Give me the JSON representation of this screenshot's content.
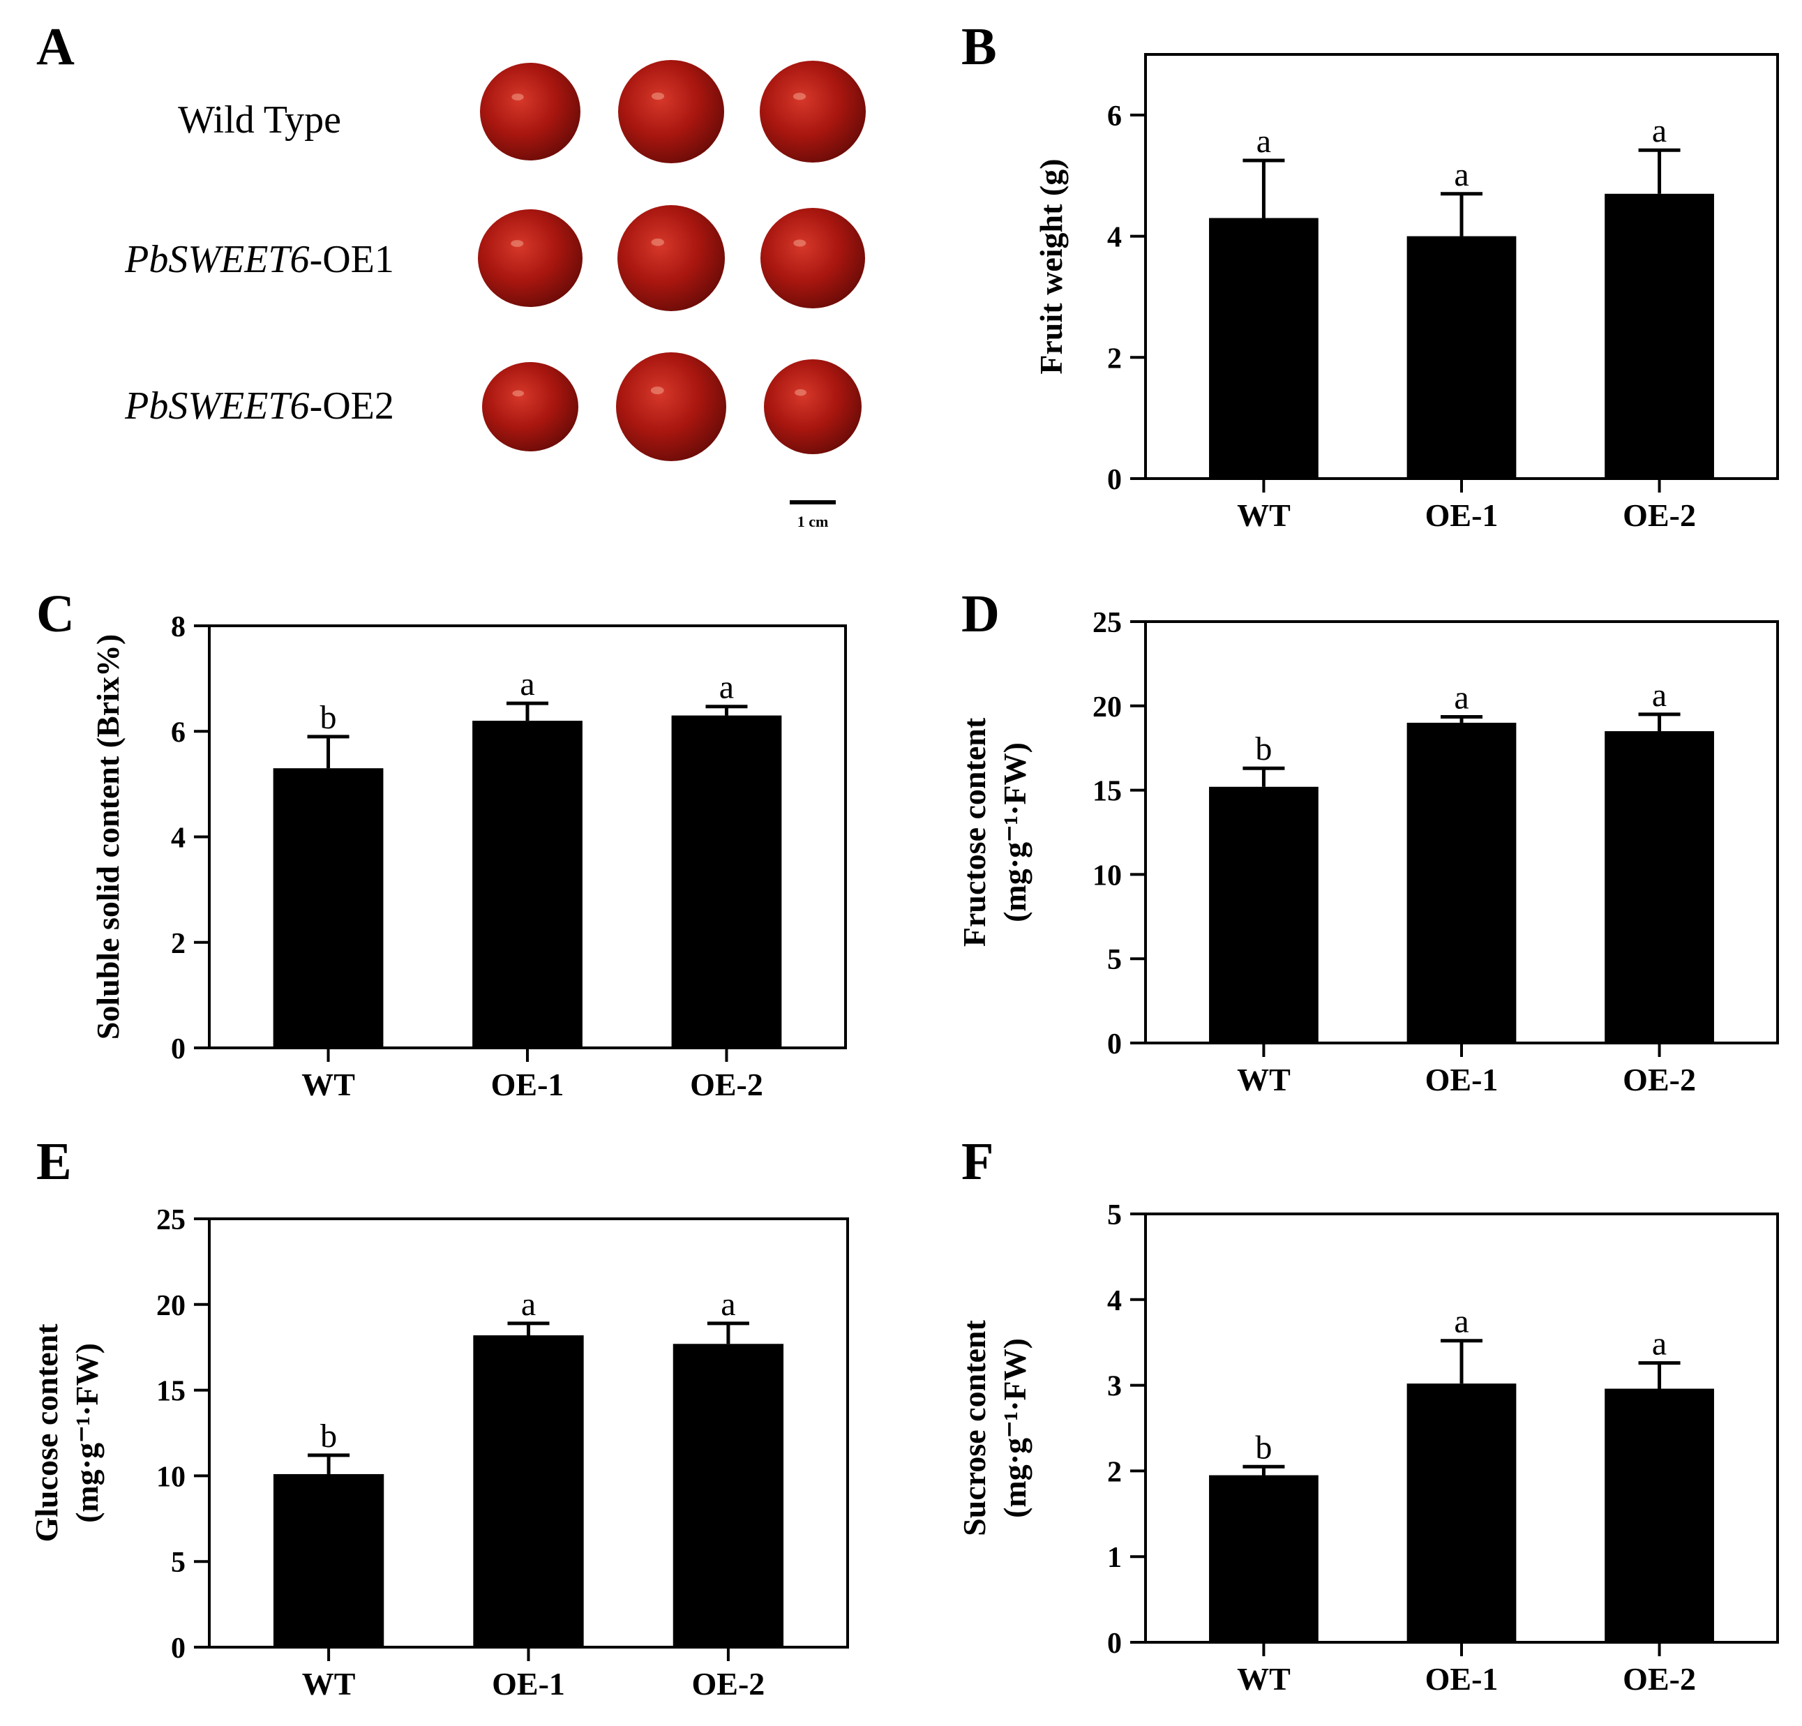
{
  "panels": [
    {
      "letter": "A"
    },
    {
      "letter": "B"
    },
    {
      "letter": "C"
    },
    {
      "letter": "D"
    },
    {
      "letter": "E"
    },
    {
      "letter": "F"
    }
  ],
  "photo_panel": {
    "rows": [
      {
        "label_italic": "",
        "label_plain": "Wild Type"
      },
      {
        "label_italic": "PbSWEET6",
        "label_plain": "-OE1"
      },
      {
        "label_italic": "PbSWEET6",
        "label_plain": "-OE2"
      }
    ],
    "scale_bar_label": "1 cm",
    "fruit_color": "#a8160f"
  },
  "chart_data": [
    {
      "panel": "B",
      "type": "bar",
      "categories": [
        "WT",
        "OE-1",
        "OE-2"
      ],
      "values": [
        4.3,
        4.0,
        4.7
      ],
      "errors": [
        0.95,
        0.7,
        0.72
      ],
      "significance": [
        "a",
        "a",
        "a"
      ],
      "ylabel_lines": [
        "Fruit weight (g)"
      ],
      "ylim": [
        0,
        7
      ],
      "yticks": [
        0,
        2,
        4,
        6
      ]
    },
    {
      "panel": "C",
      "type": "bar",
      "categories": [
        "WT",
        "OE-1",
        "OE-2"
      ],
      "values": [
        5.3,
        6.2,
        6.3
      ],
      "errors": [
        0.6,
        0.33,
        0.17
      ],
      "significance": [
        "b",
        "a",
        "a"
      ],
      "ylabel_lines": [
        "Soluble solid content (Brix%)"
      ],
      "ylim": [
        0,
        8
      ],
      "yticks": [
        0,
        2,
        4,
        6,
        8
      ]
    },
    {
      "panel": "D",
      "type": "bar",
      "categories": [
        "WT",
        "OE-1",
        "OE-2"
      ],
      "values": [
        15.2,
        19.0,
        18.5
      ],
      "errors": [
        1.1,
        0.35,
        1.0
      ],
      "significance": [
        "b",
        "a",
        "a"
      ],
      "ylabel_lines": [
        "Fructose content",
        "(mg·g⁻¹·FW)"
      ],
      "ylim": [
        0,
        25
      ],
      "yticks": [
        0,
        5,
        10,
        15,
        20,
        25
      ]
    },
    {
      "panel": "E",
      "type": "bar",
      "categories": [
        "WT",
        "OE-1",
        "OE-2"
      ],
      "values": [
        10.1,
        18.2,
        17.7
      ],
      "errors": [
        1.1,
        0.7,
        1.2
      ],
      "significance": [
        "b",
        "a",
        "a"
      ],
      "ylabel_lines": [
        "Glucose content",
        "(mg·g⁻¹·FW)"
      ],
      "ylim": [
        0,
        25
      ],
      "yticks": [
        0,
        5,
        10,
        15,
        20,
        25
      ]
    },
    {
      "panel": "F",
      "type": "bar",
      "categories": [
        "WT",
        "OE-1",
        "OE-2"
      ],
      "values": [
        1.95,
        3.02,
        2.96
      ],
      "errors": [
        0.1,
        0.5,
        0.3
      ],
      "significance": [
        "b",
        "a",
        "a"
      ],
      "ylabel_lines": [
        "Sucrose content",
        "(mg·g⁻¹·FW)"
      ],
      "ylim": [
        0,
        5
      ],
      "yticks": [
        0,
        1,
        2,
        3,
        4,
        5
      ]
    }
  ]
}
